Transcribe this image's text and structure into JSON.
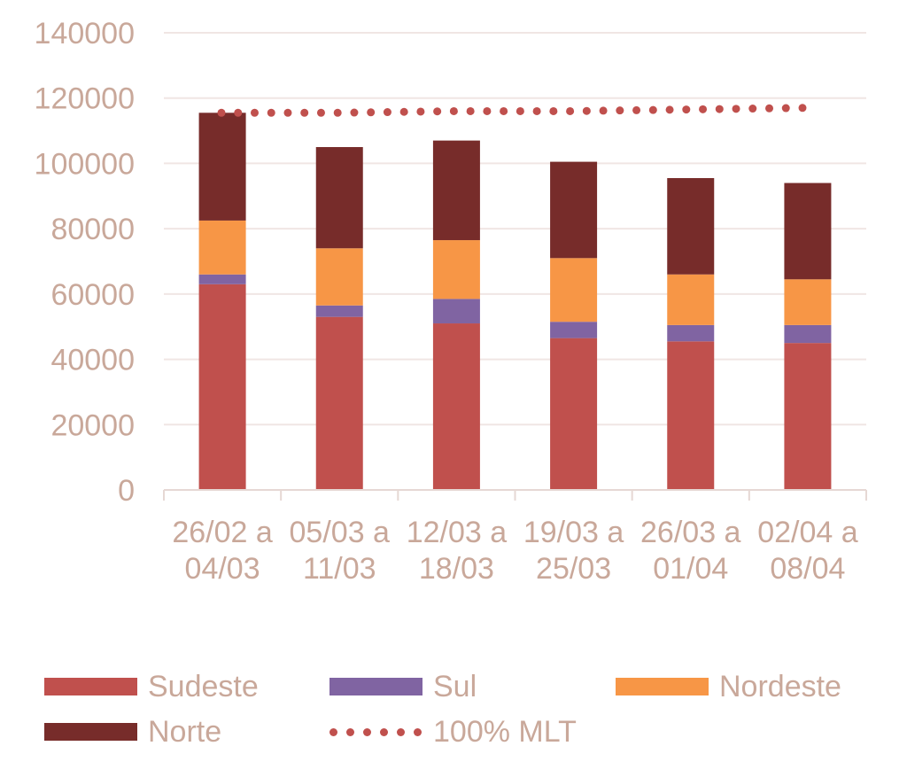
{
  "chart_data": {
    "type": "bar",
    "stacked": true,
    "categories": [
      [
        "26/02 a",
        "04/03"
      ],
      [
        "05/03 a",
        "11/03"
      ],
      [
        "12/03 a",
        "18/03"
      ],
      [
        "19/03 a",
        "25/03"
      ],
      [
        "26/03 a",
        "01/04"
      ],
      [
        "02/04 a",
        "08/04"
      ]
    ],
    "series": [
      {
        "name": "Sudeste",
        "color": "#c0504d",
        "values": [
          63000,
          53000,
          51000,
          46500,
          45500,
          45000
        ]
      },
      {
        "name": "Sul",
        "color": "#8064a2",
        "values": [
          3000,
          3500,
          7500,
          5000,
          5000,
          5500
        ]
      },
      {
        "name": "Nordeste",
        "color": "#f79646",
        "values": [
          16500,
          17500,
          18000,
          19500,
          15500,
          14000
        ]
      },
      {
        "name": "Norte",
        "color": "#772c2a",
        "values": [
          33000,
          31000,
          30500,
          29500,
          29500,
          29500
        ]
      }
    ],
    "line": {
      "name": "100% MLT",
      "color": "#c0504d",
      "style": "dotted",
      "values": [
        115500,
        115500,
        116000,
        116000,
        116500,
        117000
      ]
    },
    "yticks": [
      "0",
      "20000",
      "40000",
      "60000",
      "80000",
      "100000",
      "120000",
      "140000"
    ],
    "ylim": [
      0,
      140000
    ],
    "grid": true,
    "legend_position": "bottom",
    "colors": {
      "tick_text": "#c9a89a",
      "grid": "#f0e6e4",
      "axis": "#e6d8d4"
    }
  }
}
